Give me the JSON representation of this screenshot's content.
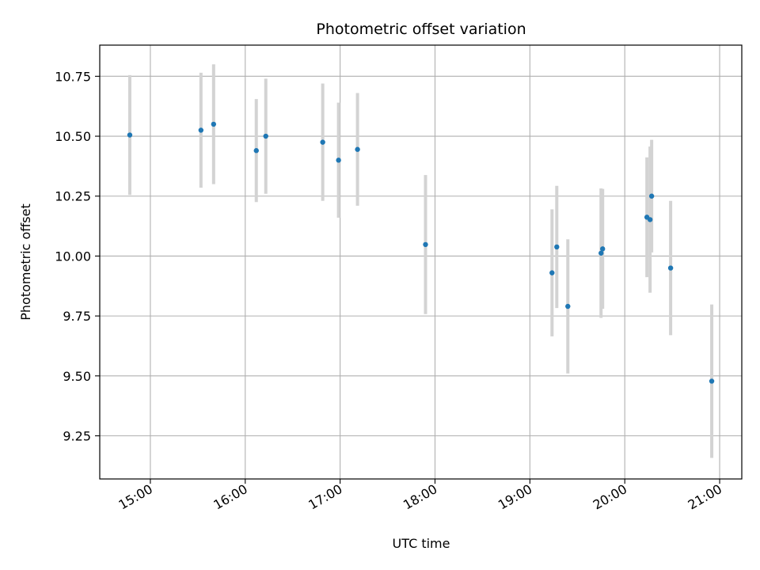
{
  "chart_data": {
    "type": "scatter",
    "title": "Photometric offset variation",
    "xlabel": "UTC time",
    "ylabel": "Photometric offset",
    "x_ticks": [
      "15:00",
      "16:00",
      "17:00",
      "18:00",
      "19:00",
      "20:00",
      "21:00"
    ],
    "y_ticks": [
      "9.25",
      "9.50",
      "9.75",
      "10.00",
      "10.25",
      "10.50",
      "10.75"
    ],
    "xlim": [
      "14:28",
      "21:14"
    ],
    "ylim": [
      9.07,
      10.88
    ],
    "grid": true,
    "colors": {
      "point": "#1f77b4",
      "errorbar": "#d3d3d3",
      "grid": "#b0b0b0"
    },
    "points": [
      {
        "x": "14:47",
        "y": 10.505,
        "err": 0.25
      },
      {
        "x": "15:32",
        "y": 10.525,
        "err": 0.24
      },
      {
        "x": "15:40",
        "y": 10.55,
        "err": 0.25
      },
      {
        "x": "16:07",
        "y": 10.44,
        "err": 0.215
      },
      {
        "x": "16:13",
        "y": 10.5,
        "err": 0.24
      },
      {
        "x": "16:49",
        "y": 10.475,
        "err": 0.245
      },
      {
        "x": "16:59",
        "y": 10.4,
        "err": 0.24
      },
      {
        "x": "17:11",
        "y": 10.445,
        "err": 0.235
      },
      {
        "x": "17:54",
        "y": 10.048,
        "err": 0.29
      },
      {
        "x": "19:14",
        "y": 9.93,
        "err": 0.265
      },
      {
        "x": "19:17",
        "y": 10.038,
        "err": 0.255
      },
      {
        "x": "19:24",
        "y": 9.79,
        "err": 0.28
      },
      {
        "x": "19:45",
        "y": 10.012,
        "err": 0.27
      },
      {
        "x": "19:46",
        "y": 10.03,
        "err": 0.25
      },
      {
        "x": "20:14",
        "y": 10.162,
        "err": 0.25
      },
      {
        "x": "20:16",
        "y": 10.152,
        "err": 0.305
      },
      {
        "x": "20:17",
        "y": 10.25,
        "err": 0.235
      },
      {
        "x": "20:29",
        "y": 9.95,
        "err": 0.28
      },
      {
        "x": "20:55",
        "y": 9.478,
        "err": 0.32
      }
    ]
  }
}
